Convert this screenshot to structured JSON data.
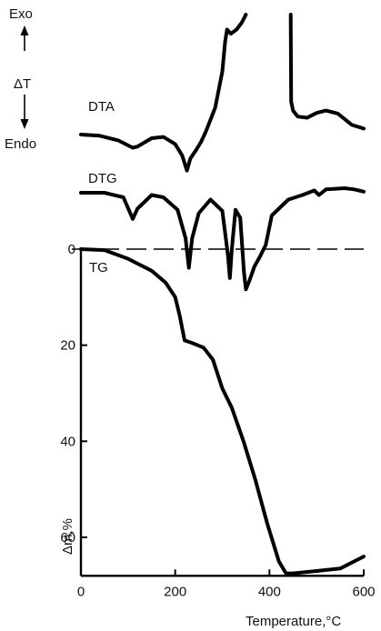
{
  "chart_data": {
    "type": "line",
    "xlabel": "Temperature,°C",
    "ylabel": "Δm,%",
    "xlim": [
      0,
      600
    ],
    "ylim_mass": [
      0,
      68
    ],
    "x_ticks": [
      "0",
      "200",
      "400",
      "600"
    ],
    "y_ticks": [
      "0",
      "20",
      "40",
      "60"
    ],
    "direction_labels": {
      "exo": "Exo",
      "delta_t": "ΔT",
      "endo": "Endo"
    },
    "series": [
      {
        "name": "DTA",
        "label": "DTA",
        "qualitative": true,
        "x": [
          0,
          40,
          80,
          110,
          120,
          150,
          175,
          200,
          215,
          225,
          232,
          245,
          255,
          265,
          285,
          300,
          306,
          310,
          318,
          330,
          340,
          345,
          350
        ],
        "values": [
          0,
          -0.2,
          -1.0,
          -2.2,
          -2.0,
          -0.6,
          -0.4,
          -1.6,
          -3.5,
          -6.0,
          -4.0,
          -2.5,
          -1.2,
          0.5,
          4.5,
          10.5,
          15.5,
          17.5,
          16.8,
          17.5,
          18.5,
          19.2,
          20
        ],
        "x_2": [
          445,
          446,
          450,
          460,
          480,
          500,
          520,
          545,
          575,
          600
        ],
        "values_2": [
          20,
          5.5,
          4.0,
          3.0,
          2.8,
          3.6,
          4.0,
          3.5,
          1.6,
          1.0
        ]
      },
      {
        "name": "DTG",
        "label": "DTG",
        "qualitative": true,
        "x": [
          0,
          50,
          90,
          110,
          120,
          150,
          175,
          205,
          222,
          229,
          236,
          250,
          275,
          300,
          312,
          316,
          320,
          328,
          338,
          346,
          350,
          357,
          368,
          380,
          392,
          405,
          440,
          470,
          495,
          505,
          520,
          560,
          580,
          600
        ],
        "values": [
          0,
          0,
          -0.4,
          -2.3,
          -1.4,
          -0.2,
          -0.4,
          -1.5,
          -4.0,
          -6.6,
          -4.0,
          -1.8,
          -0.6,
          -1.6,
          -5.5,
          -7.5,
          -5.0,
          -1.5,
          -2.2,
          -7.0,
          -8.5,
          -7.8,
          -6.5,
          -5.6,
          -4.6,
          -2.0,
          -0.6,
          -0.2,
          0.2,
          -0.2,
          0.3,
          0.4,
          0.3,
          0.1
        ]
      },
      {
        "name": "TG",
        "label": "TG",
        "x": [
          0,
          50,
          100,
          150,
          180,
          200,
          210,
          220,
          235,
          260,
          280,
          300,
          320,
          345,
          370,
          395,
          420,
          435,
          450,
          500,
          550,
          580,
          600
        ],
        "values": [
          0,
          0.2,
          2.0,
          4.5,
          7.0,
          10.0,
          14.0,
          19.0,
          19.5,
          20.5,
          23.0,
          29.0,
          33.0,
          40.0,
          48.0,
          57.0,
          65.0,
          67.5,
          67.5,
          67.0,
          66.5,
          65.0,
          64.0
        ]
      }
    ]
  }
}
